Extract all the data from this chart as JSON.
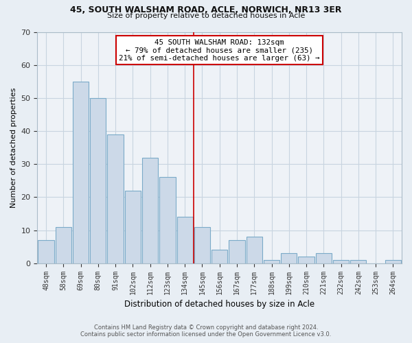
{
  "title": "45, SOUTH WALSHAM ROAD, ACLE, NORWICH, NR13 3ER",
  "subtitle": "Size of property relative to detached houses in Acle",
  "xlabel": "Distribution of detached houses by size in Acle",
  "ylabel": "Number of detached properties",
  "bin_labels": [
    "48sqm",
    "58sqm",
    "69sqm",
    "80sqm",
    "91sqm",
    "102sqm",
    "112sqm",
    "123sqm",
    "134sqm",
    "145sqm",
    "156sqm",
    "167sqm",
    "177sqm",
    "188sqm",
    "199sqm",
    "210sqm",
    "221sqm",
    "232sqm",
    "242sqm",
    "253sqm",
    "264sqm"
  ],
  "bar_heights": [
    7,
    11,
    55,
    50,
    39,
    22,
    32,
    26,
    14,
    11,
    4,
    7,
    8,
    1,
    3,
    2,
    3,
    1,
    1,
    0,
    1
  ],
  "bar_color": "#ccd9e8",
  "bar_edge_color": "#7aaac8",
  "vline_x_idx": 8,
  "vline_color": "#cc0000",
  "annotation_title": "45 SOUTH WALSHAM ROAD: 132sqm",
  "annotation_line1": "← 79% of detached houses are smaller (235)",
  "annotation_line2": "21% of semi-detached houses are larger (63) →",
  "annotation_box_edge": "#cc0000",
  "ylim": [
    0,
    70
  ],
  "yticks": [
    0,
    10,
    20,
    30,
    40,
    50,
    60,
    70
  ],
  "footer_line1": "Contains HM Land Registry data © Crown copyright and database right 2024.",
  "footer_line2": "Contains public sector information licensed under the Open Government Licence v3.0.",
  "bg_color": "#e8eef4",
  "plot_bg_color": "#eef2f7",
  "grid_color": "#c8d4e0"
}
